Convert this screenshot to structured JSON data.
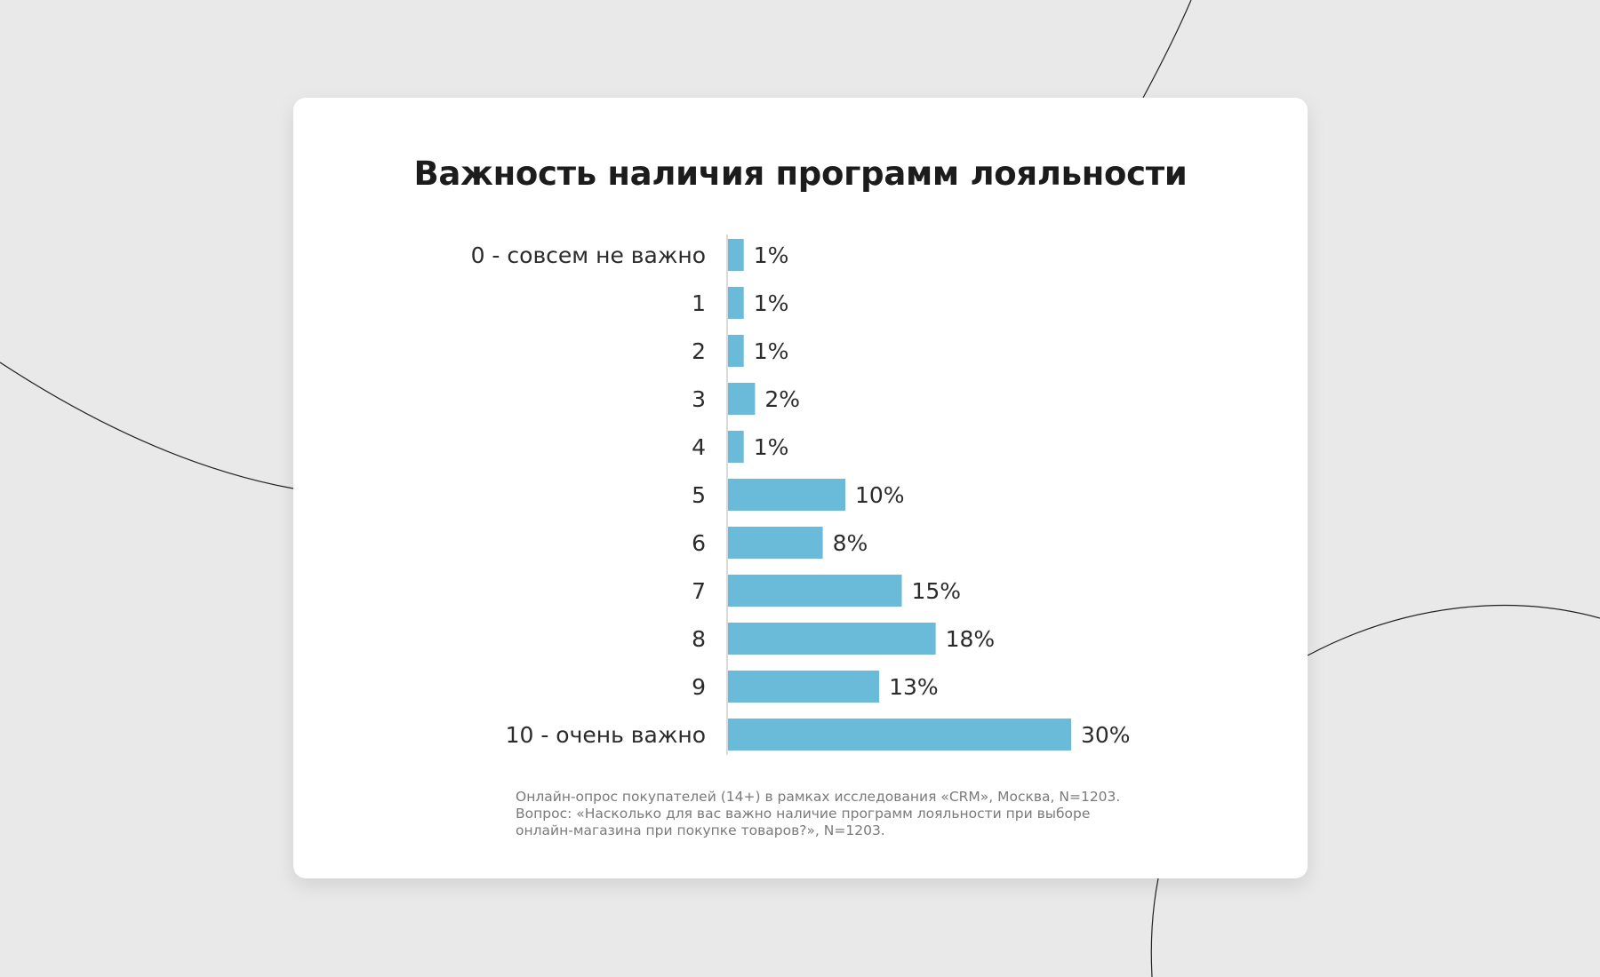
{
  "colors": {
    "background": "#e9e9e9",
    "card": "#ffffff",
    "bar": "#69bbd9",
    "axis": "#cfcfcf"
  },
  "chart_data": {
    "type": "bar",
    "orientation": "horizontal",
    "title": "Важность наличия программ лояльности",
    "categories": [
      "0 - совсем не важно",
      "1",
      "2",
      "3",
      "4",
      "5",
      "6",
      "7",
      "8",
      "9",
      "10 - очень важно"
    ],
    "values": [
      1,
      1,
      1,
      2,
      1,
      10,
      8,
      15,
      18,
      13,
      30
    ],
    "value_labels": [
      "1%",
      "1%",
      "1%",
      "2%",
      "1%",
      "10%",
      "8%",
      "15%",
      "18%",
      "13%",
      "30%"
    ],
    "unit": "%",
    "grid": false,
    "legend": "none"
  },
  "footnote": {
    "line1": "Онлайн-опрос покупателей (14+) в рамках исследования «CRM», Москва, N=1203.",
    "line2": "Вопрос: «Насколько для вас важно наличие программ лояльности при выборе",
    "line3": "онлайн-магазина при покупке товаров?», N=1203."
  }
}
